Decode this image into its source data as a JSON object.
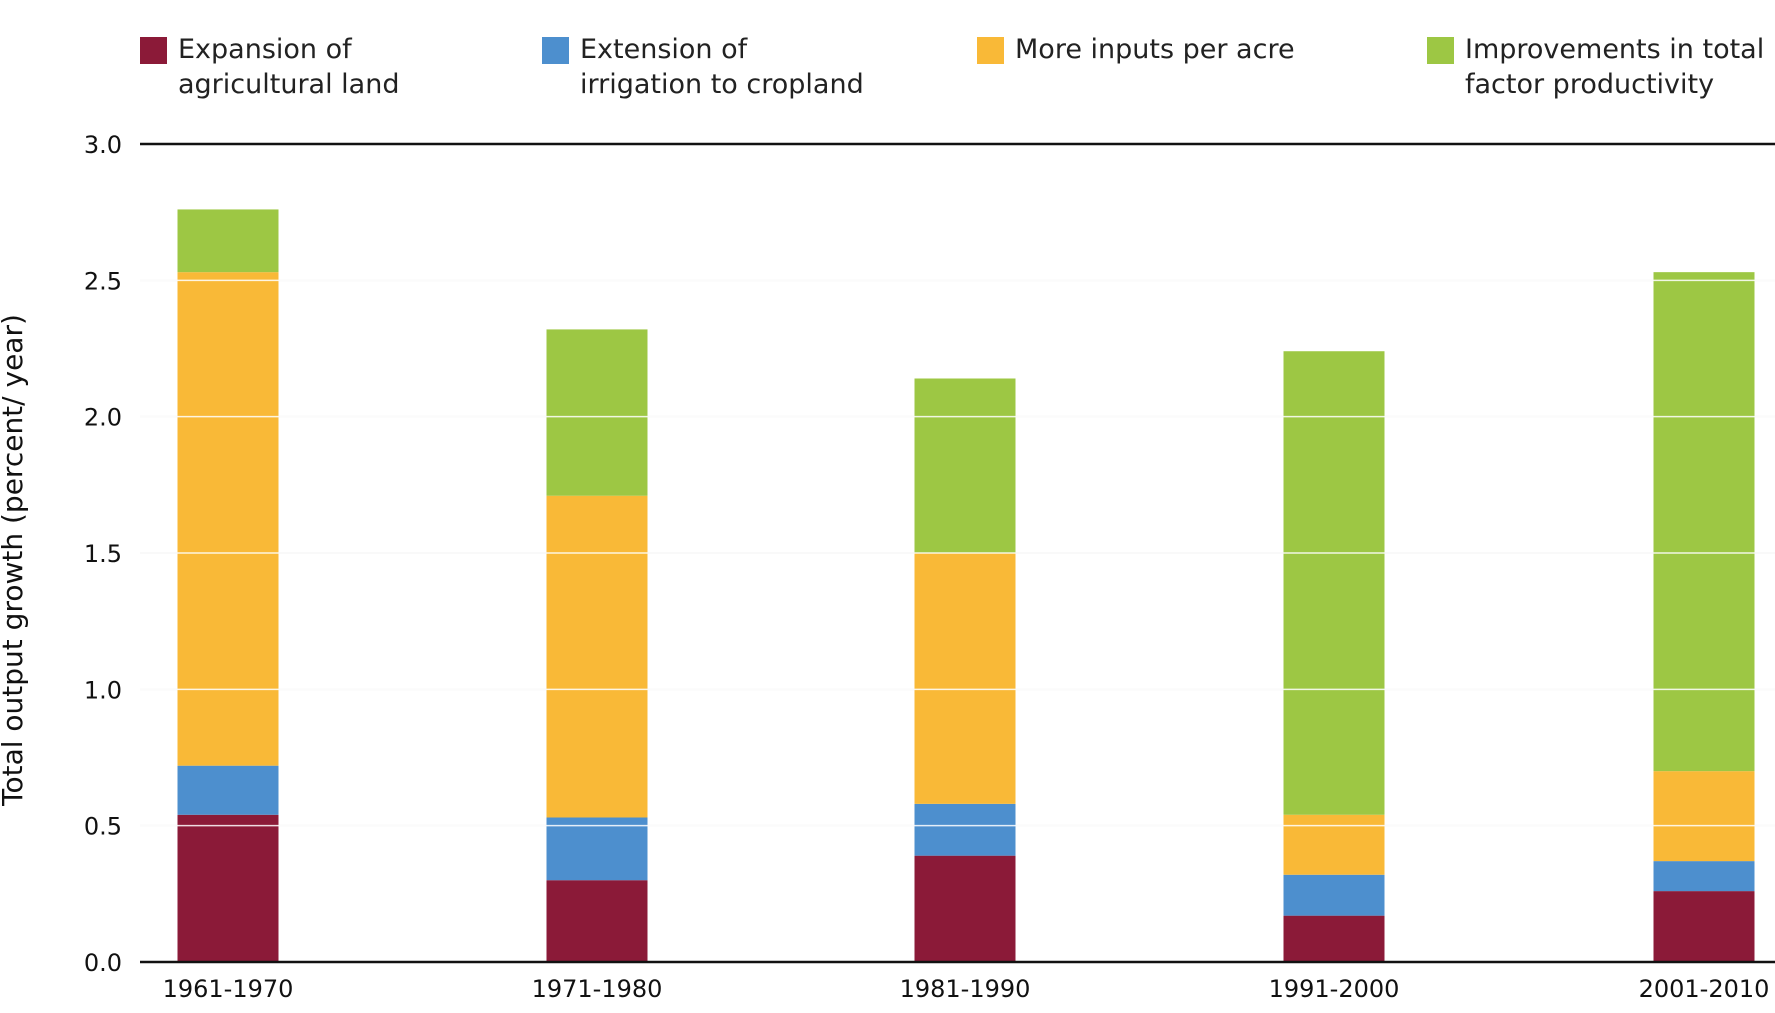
{
  "chart_data": {
    "type": "bar",
    "stacked": true,
    "title": "",
    "xlabel": "",
    "ylabel": "Total output growth (percent/ year)",
    "ylim": [
      0,
      3.0
    ],
    "yticks": [
      "0.0",
      "0.5",
      "1.0",
      "1.5",
      "2.0",
      "2.5",
      "3.0"
    ],
    "categories": [
      "1961-1970",
      "1971-1980",
      "1981-1990",
      "1991-2000",
      "2001-2010"
    ],
    "legend_position": "top",
    "series": [
      {
        "name": "Expansion of\nagricultural land",
        "color": "#8b1a38",
        "values": [
          0.54,
          0.3,
          0.39,
          0.17,
          0.26
        ]
      },
      {
        "name": "Extension of\nirrigation to cropland",
        "color": "#4d8fce",
        "values": [
          0.18,
          0.23,
          0.19,
          0.15,
          0.11
        ]
      },
      {
        "name": "More inputs per acre",
        "color": "#f9b937",
        "values": [
          1.81,
          1.18,
          0.92,
          0.22,
          0.33
        ]
      },
      {
        "name": "Improvements in total\nfactor productivity",
        "color": "#9dc744",
        "values": [
          0.23,
          0.61,
          0.64,
          1.7,
          1.83
        ]
      }
    ]
  }
}
